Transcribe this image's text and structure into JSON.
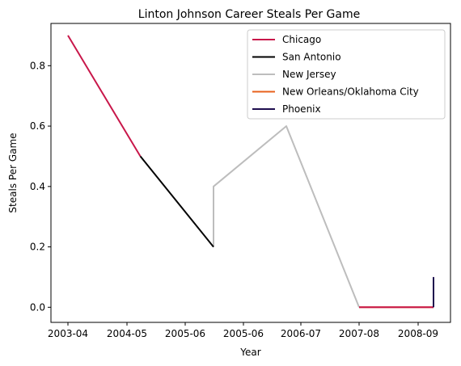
{
  "chart_data": {
    "type": "line",
    "title": "Linton Johnson Career Steals Per Game",
    "xlabel": "Year",
    "ylabel": "Steals Per Game",
    "ylim": [
      -0.05,
      0.94
    ],
    "grid": false,
    "legend_position": "top-right",
    "x_ticks": [
      "2003-04",
      "2004-05",
      "2005-06",
      "2005-06",
      "2006-07",
      "2007-08",
      "2008-09"
    ],
    "y_ticks": [
      0.0,
      0.2,
      0.4,
      0.6,
      0.8
    ],
    "series": [
      {
        "name": "Chicago",
        "color": "#c8174a",
        "points": [
          [
            0,
            0.9
          ],
          [
            1,
            0.5
          ]
        ]
      },
      {
        "name": "San Antonio",
        "color": "#000000",
        "points": [
          [
            1,
            0.5
          ],
          [
            2,
            0.2
          ]
        ]
      },
      {
        "name": "New Jersey",
        "color": "#bdbdbd",
        "points": [
          [
            2,
            0.2
          ],
          [
            2,
            0.4
          ],
          [
            3,
            0.6
          ],
          [
            4,
            0.0
          ]
        ]
      },
      {
        "name": "New Orleans/Oklahoma City",
        "color": "#e8601c",
        "points": [
          [
            4,
            0.0
          ],
          [
            5,
            0.0
          ]
        ]
      },
      {
        "name": "Phoenix",
        "color": "#1e0d4e",
        "points": [
          [
            5,
            0.0
          ],
          [
            5,
            0.1
          ]
        ]
      },
      {
        "name": "",
        "color": "#c8174a",
        "points": [
          [
            4,
            0.0
          ],
          [
            5,
            0.0
          ]
        ]
      }
    ],
    "x_points": [
      0,
      1,
      2,
      3,
      4,
      5
    ],
    "x_point_ticks": {
      "0": "2003-04",
      "1": "2004-05",
      "2": "2005-06",
      "3": "2006-07",
      "4": "2007-08",
      "5": "2008-09"
    }
  }
}
